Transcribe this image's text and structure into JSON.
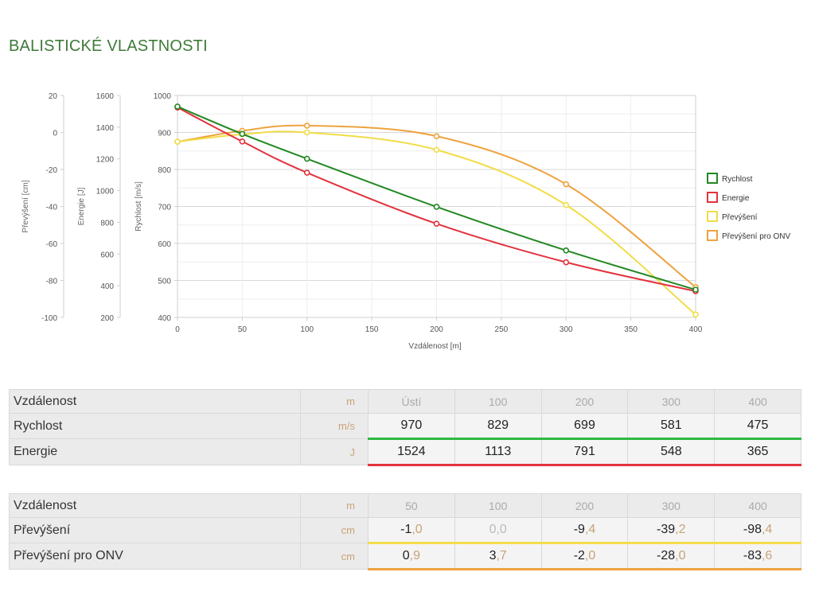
{
  "page": {
    "title": "BALISTICKÉ VLASTNOSTI"
  },
  "chart_data": {
    "type": "line",
    "x_axis": {
      "label": "Vzdálenost [m]",
      "range": [
        0,
        400
      ],
      "ticks": [
        0,
        50,
        100,
        150,
        200,
        250,
        300,
        350,
        400
      ]
    },
    "y_axes": [
      {
        "id": "prevyseni",
        "label": "Převýšení [cm]",
        "range": [
          -100,
          20
        ],
        "ticks": [
          20,
          0,
          -20,
          -40,
          -60,
          -80,
          -100
        ]
      },
      {
        "id": "energie",
        "label": "Energie [J]",
        "range": [
          200,
          1600
        ],
        "ticks": [
          1600,
          1400,
          1200,
          1000,
          800,
          600,
          400,
          200
        ]
      },
      {
        "id": "rychlost",
        "label": "Rychlost [m/s]",
        "range": [
          400,
          1000
        ],
        "ticks": [
          1000,
          900,
          800,
          700,
          600,
          500,
          400
        ]
      }
    ],
    "grid": true,
    "legend_position": "right",
    "series": [
      {
        "name": "Rychlost",
        "axis": "rychlost",
        "color": "#238823",
        "points": [
          [
            0,
            970
          ],
          [
            50,
            896
          ],
          [
            100,
            829
          ],
          [
            200,
            699
          ],
          [
            300,
            581
          ],
          [
            400,
            475
          ]
        ]
      },
      {
        "name": "Energie",
        "axis": "energie",
        "color": "#e2333e",
        "points": [
          [
            0,
            1524
          ],
          [
            50,
            1310
          ],
          [
            100,
            1113
          ],
          [
            200,
            791
          ],
          [
            300,
            548
          ],
          [
            400,
            365
          ]
        ]
      },
      {
        "name": "Převýšení",
        "axis": "prevyseni",
        "color": "#f1dd48",
        "points": [
          [
            0,
            -5.0
          ],
          [
            50,
            -1.0
          ],
          [
            100,
            0.0
          ],
          [
            200,
            -9.4
          ],
          [
            300,
            -39.2
          ],
          [
            400,
            -98.4
          ]
        ]
      },
      {
        "name": "Převýšení pro ONV",
        "axis": "prevyseni",
        "color": "#eea33f",
        "points": [
          [
            0,
            -5.0
          ],
          [
            50,
            0.9
          ],
          [
            100,
            3.7
          ],
          [
            200,
            -2.0
          ],
          [
            300,
            -28.0
          ],
          [
            400,
            -83.6
          ]
        ]
      }
    ]
  },
  "table1": {
    "header": {
      "label": "Vzdálenost",
      "unit": "m",
      "cols": [
        "Ústí",
        "100",
        "200",
        "300",
        "400"
      ]
    },
    "rows": [
      {
        "label": "Rychlost",
        "unit": "m/s",
        "values": [
          "970",
          "829",
          "699",
          "581",
          "475"
        ]
      },
      {
        "label": "Energie",
        "unit": "J",
        "values": [
          "1524",
          "1113",
          "791",
          "548",
          "365"
        ]
      }
    ]
  },
  "table2": {
    "header": {
      "label": "Vzdálenost",
      "unit": "m",
      "cols": [
        "50",
        "100",
        "200",
        "300",
        "400"
      ]
    },
    "rows": [
      {
        "label": "Převýšení",
        "unit": "cm",
        "values": [
          {
            "int": "-1",
            "frac": ",0"
          },
          {
            "int": "0",
            "frac": ",0"
          },
          {
            "int": "-9",
            "frac": ",4"
          },
          {
            "int": "-39",
            "frac": ",2"
          },
          {
            "int": "-98",
            "frac": ",4"
          }
        ]
      },
      {
        "label": "Převýšení pro ONV",
        "unit": "cm",
        "values": [
          {
            "int": "0",
            "frac": ",9"
          },
          {
            "int": "3",
            "frac": ",7"
          },
          {
            "int": "-2",
            "frac": ",0"
          },
          {
            "int": "-28",
            "frac": ",0"
          },
          {
            "int": "-83",
            "frac": ",6"
          }
        ]
      }
    ]
  }
}
